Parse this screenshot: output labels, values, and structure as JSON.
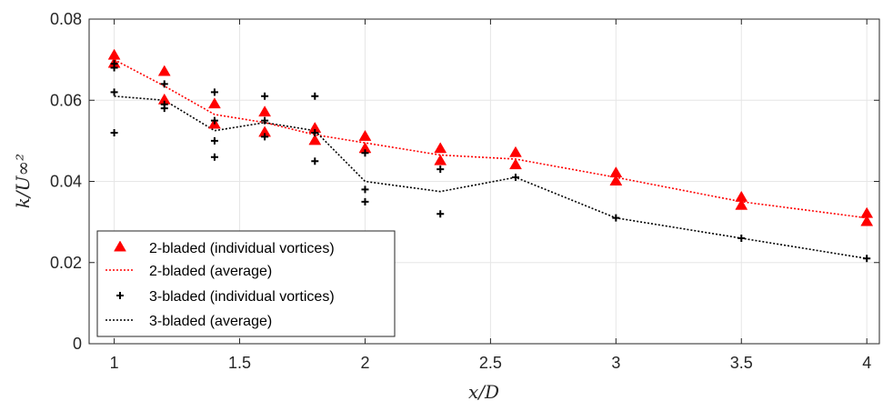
{
  "chart_data": {
    "type": "scatter",
    "xlabel": "x/D",
    "ylabel": "k/U∞²",
    "xlim": [
      0.9,
      4.05
    ],
    "ylim": [
      0,
      0.08
    ],
    "xticks": [
      "1",
      "1.5",
      "2",
      "2.5",
      "3",
      "3.5",
      "4"
    ],
    "yticks": [
      "0",
      "0.02",
      "0.04",
      "0.06",
      "0.08"
    ],
    "grid": true,
    "legend_position": "bottom-left",
    "series": [
      {
        "name": "2-bladed (individual vortices)",
        "kind": "markers",
        "marker": "triangle",
        "color": "#ff0000",
        "points": [
          [
            1,
            0.071
          ],
          [
            1,
            0.069
          ],
          [
            1.2,
            0.067
          ],
          [
            1.2,
            0.06
          ],
          [
            1.4,
            0.059
          ],
          [
            1.4,
            0.054
          ],
          [
            1.6,
            0.057
          ],
          [
            1.6,
            0.052
          ],
          [
            1.8,
            0.053
          ],
          [
            1.8,
            0.05
          ],
          [
            2,
            0.051
          ],
          [
            2,
            0.048
          ],
          [
            2.3,
            0.048
          ],
          [
            2.3,
            0.045
          ],
          [
            2.6,
            0.047
          ],
          [
            2.6,
            0.044
          ],
          [
            3,
            0.042
          ],
          [
            3,
            0.04
          ],
          [
            3.5,
            0.036
          ],
          [
            3.5,
            0.034
          ],
          [
            4,
            0.032
          ],
          [
            4,
            0.03
          ]
        ]
      },
      {
        "name": "2-bladed (average)",
        "kind": "line",
        "color": "#ff0000",
        "x": [
          1,
          1.2,
          1.4,
          1.6,
          1.8,
          2,
          2.3,
          2.6,
          3,
          3.5,
          4
        ],
        "y": [
          0.07,
          0.0635,
          0.0565,
          0.0545,
          0.0515,
          0.0495,
          0.0465,
          0.0455,
          0.041,
          0.035,
          0.031
        ]
      },
      {
        "name": "3-bladed (individual vortices)",
        "kind": "markers",
        "marker": "plus",
        "color": "#000000",
        "points": [
          [
            1,
            0.069
          ],
          [
            1,
            0.068
          ],
          [
            1,
            0.062
          ],
          [
            1,
            0.052
          ],
          [
            1.2,
            0.064
          ],
          [
            1.2,
            0.059
          ],
          [
            1.2,
            0.058
          ],
          [
            1.4,
            0.062
          ],
          [
            1.4,
            0.055
          ],
          [
            1.4,
            0.05
          ],
          [
            1.4,
            0.046
          ],
          [
            1.6,
            0.061
          ],
          [
            1.6,
            0.055
          ],
          [
            1.6,
            0.051
          ],
          [
            1.8,
            0.061
          ],
          [
            1.8,
            0.052
          ],
          [
            1.8,
            0.045
          ],
          [
            2,
            0.047
          ],
          [
            2,
            0.038
          ],
          [
            2,
            0.035
          ],
          [
            2.3,
            0.043
          ],
          [
            2.3,
            0.032
          ],
          [
            2.6,
            0.041
          ],
          [
            3,
            0.031
          ],
          [
            3.5,
            0.026
          ],
          [
            4,
            0.021
          ]
        ]
      },
      {
        "name": "3-bladed (average)",
        "kind": "line",
        "color": "#000000",
        "x": [
          1,
          1.2,
          1.4,
          1.6,
          1.8,
          2,
          2.3,
          2.6,
          3,
          3.5,
          4
        ],
        "y": [
          0.061,
          0.06,
          0.0525,
          0.0545,
          0.0525,
          0.04,
          0.0375,
          0.041,
          0.031,
          0.026,
          0.021
        ]
      }
    ]
  }
}
